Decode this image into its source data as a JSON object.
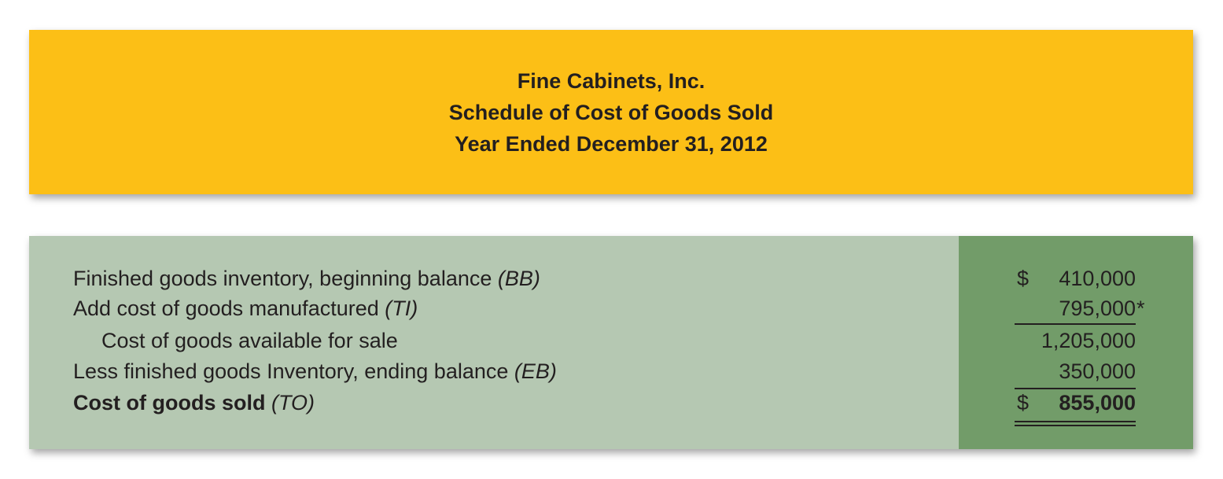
{
  "header": {
    "company": "Fine Cabinets, Inc.",
    "title": "Schedule of Cost of Goods Sold",
    "period": "Year Ended December 31, 2012"
  },
  "colors": {
    "header_bg": "#fcbf16",
    "body_bg": "#b5c8b2",
    "amount_col_bg": "#729c69",
    "text": "#231f20"
  },
  "rows": [
    {
      "label": "Finished goods inventory, beginning balance",
      "code": "(BB)",
      "dollar": "$",
      "amount": "410,000",
      "note": ""
    },
    {
      "label": "Add cost of goods manufactured",
      "code": "(TI)",
      "dollar": "",
      "amount": "795,000",
      "note": "*"
    },
    {
      "label": "Cost of goods available for sale",
      "code": "",
      "dollar": "",
      "amount": "1,205,000",
      "note": ""
    },
    {
      "label": "Less finished goods Inventory, ending balance",
      "code": "(EB)",
      "dollar": "",
      "amount": "350,000",
      "note": ""
    },
    {
      "label": "Cost of goods sold",
      "code": "(TO)",
      "dollar": "$",
      "amount": "855,000",
      "note": ""
    }
  ]
}
